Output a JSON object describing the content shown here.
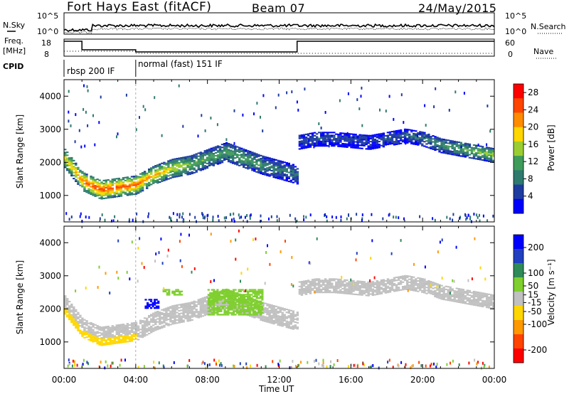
{
  "header": {
    "radar": "Fort Hays East (fitACF)",
    "beam": "Beam 07",
    "date": "24/May/2015"
  },
  "top_panel": {
    "nsky_label": "N.Sky",
    "nsearch_label": "N.Search",
    "freq_label": "Freq.",
    "freq_unit": "[MHz]",
    "nave_label": "Nave",
    "cpid_label": "CPID",
    "noise_ticks_left": [
      "10^5",
      "10^0"
    ],
    "noise_ticks_right": [
      "10^5",
      "10^0"
    ],
    "freq_ticks": [
      "18",
      "8"
    ],
    "nave_ticks": [
      "60",
      "0"
    ],
    "cpid_segments": [
      "rbsp 200 IF",
      "normal (fast) 151 IF"
    ]
  },
  "colors": {
    "power_scale": [
      "#0000ff",
      "#1e3ca0",
      "#2f7a6e",
      "#3f9b5a",
      "#9acd32",
      "#ffd700",
      "#ff8c00",
      "#ff4500",
      "#ff0000"
    ],
    "velocity_scale": [
      "#0000ff",
      "#2040c0",
      "#2e8b57",
      "#7fcf2f",
      "#c0c0c0",
      "#ffd700",
      "#ff9900",
      "#ff4400",
      "#ff0000"
    ]
  },
  "chart_data": [
    {
      "type": "heatmap",
      "name": "power",
      "xlabel": "Time UT",
      "ylabel": "Slant Range [km]",
      "x_ticks": [
        "00:00",
        "04:00",
        "08:00",
        "12:00",
        "16:00",
        "20:00",
        "00:00"
      ],
      "y_ticks": [
        "1000",
        "2000",
        "3000",
        "4000"
      ],
      "xlim": [
        0,
        24
      ],
      "ylim": [
        200,
        4500
      ],
      "colorbar": {
        "label": "Power [dB]",
        "ticks": [
          "4",
          "8",
          "12",
          "16",
          "20",
          "24",
          "28"
        ],
        "range": [
          0,
          30
        ]
      },
      "bands": [
        {
          "x": [
            0,
            1,
            2,
            4,
            5,
            6,
            7,
            8,
            9,
            10,
            11,
            12,
            13
          ],
          "y_center": [
            2100,
            1400,
            1150,
            1300,
            1600,
            1800,
            1900,
            2100,
            2300,
            2100,
            1900,
            1750,
            1600
          ],
          "width": 550,
          "peak_db": [
            18,
            24,
            26,
            24,
            20,
            18,
            14,
            12,
            12,
            12,
            10,
            8,
            8
          ]
        },
        {
          "x": [
            13,
            14,
            15,
            16,
            17,
            18,
            19,
            20,
            21,
            22,
            23,
            24
          ],
          "y_center": [
            2600,
            2700,
            2700,
            2650,
            2600,
            2700,
            2800,
            2700,
            2500,
            2400,
            2300,
            2200
          ],
          "width": 450,
          "peak_db": [
            6,
            6,
            5,
            5,
            5,
            6,
            6,
            8,
            10,
            12,
            14,
            16
          ]
        }
      ]
    },
    {
      "type": "heatmap",
      "name": "velocity",
      "xlabel": "Time UT",
      "ylabel": "Slant Range [km]",
      "x_ticks": [
        "00:00",
        "04:00",
        "08:00",
        "12:00",
        "16:00",
        "20:00",
        "00:00"
      ],
      "y_ticks": [
        "1000",
        "2000",
        "3000",
        "4000"
      ],
      "xlim": [
        0,
        24
      ],
      "ylim": [
        200,
        4500
      ],
      "colorbar": {
        "label": "Velocity [m s⁻¹]",
        "ticks": [
          "200",
          "100",
          "50",
          "15",
          "-15",
          "-50",
          "-100",
          "-200"
        ],
        "range": [
          -250,
          250
        ]
      },
      "features": [
        {
          "x": [
            4.5,
            5.2
          ],
          "y": [
            2000,
            2300
          ],
          "velocity": 220
        },
        {
          "x": [
            5.5,
            6.5
          ],
          "y": [
            2400,
            2600
          ],
          "velocity": 60
        },
        {
          "x": [
            8,
            11
          ],
          "y": [
            1800,
            2600
          ],
          "velocity": 40
        }
      ]
    }
  ]
}
